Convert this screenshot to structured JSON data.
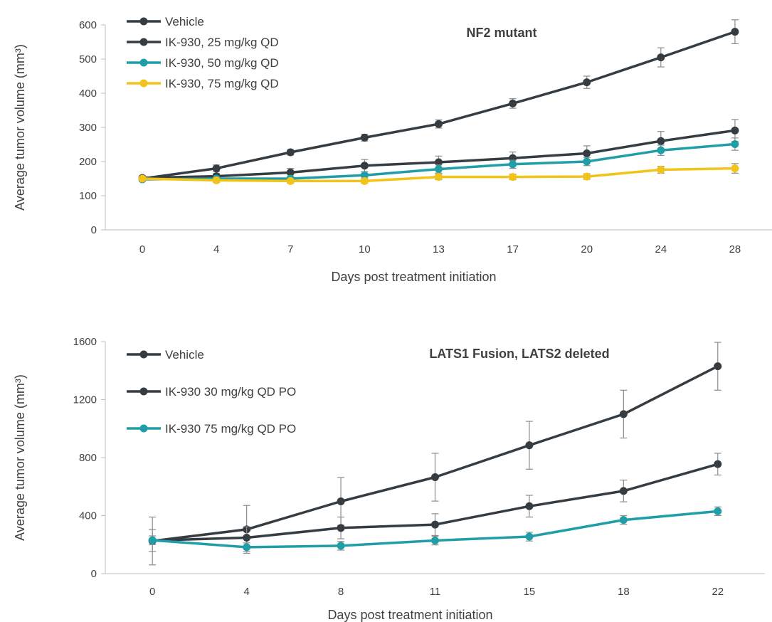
{
  "chart_data": [
    {
      "type": "line",
      "title": "NF2 mutant",
      "xlabel": "Days post treatment initiation",
      "ylabel": "Average tumor volume (mm³)",
      "x": [
        "0",
        "4",
        "7",
        "10",
        "13",
        "17",
        "20",
        "24",
        "28"
      ],
      "ylim": [
        0,
        600
      ],
      "yticks": [
        0,
        100,
        200,
        300,
        400,
        500,
        600
      ],
      "grid": false,
      "legend_position": "top-left",
      "series": [
        {
          "name": "Vehicle",
          "color": "#353c42",
          "values": [
            150,
            180,
            227,
            270,
            310,
            370,
            432,
            505,
            580
          ],
          "errors": [
            8,
            10,
            8,
            10,
            12,
            14,
            18,
            28,
            35
          ]
        },
        {
          "name": "IK-930, 25 mg/kg QD",
          "color": "#353c42",
          "values": [
            152,
            157,
            168,
            188,
            198,
            210,
            224,
            260,
            291
          ],
          "errors": [
            6,
            8,
            12,
            18,
            18,
            18,
            22,
            28,
            32
          ]
        },
        {
          "name": "IK-930, 50 mg/kg QD",
          "color": "#1f9ea8",
          "values": [
            148,
            150,
            150,
            160,
            178,
            192,
            200,
            233,
            251
          ],
          "errors": [
            5,
            6,
            6,
            10,
            12,
            12,
            12,
            15,
            18
          ]
        },
        {
          "name": "IK-930, 75 mg/kg QD",
          "color": "#f2c318",
          "values": [
            150,
            145,
            143,
            143,
            155,
            155,
            156,
            176,
            180
          ],
          "errors": [
            4,
            6,
            6,
            6,
            8,
            8,
            8,
            10,
            14
          ]
        }
      ]
    },
    {
      "type": "line",
      "title": "LATS1 Fusion, LATS2 deleted",
      "xlabel": "Days post treatment initiation",
      "ylabel": "Average tumor volume (mm³)",
      "x": [
        "0",
        "4",
        "8",
        "11",
        "15",
        "18",
        "22"
      ],
      "ylim": [
        0,
        1600
      ],
      "yticks": [
        0,
        400,
        800,
        1200,
        1600
      ],
      "grid": false,
      "legend_position": "top-left",
      "series": [
        {
          "name": "Vehicle",
          "color": "#353c42",
          "values": [
            225,
            305,
            498,
            665,
            885,
            1100,
            1430
          ],
          "errors": [
            165,
            165,
            165,
            165,
            165,
            165,
            165
          ]
        },
        {
          "name": "IK-930 30 mg/kg QD PO",
          "color": "#353c42",
          "values": [
            228,
            248,
            315,
            338,
            465,
            570,
            755
          ],
          "errors": [
            75,
            75,
            75,
            75,
            75,
            75,
            75
          ]
        },
        {
          "name": "IK-930 75 mg/kg QD PO",
          "color": "#1f9ea8",
          "values": [
            230,
            182,
            192,
            228,
            255,
            370,
            430
          ],
          "errors": [
            30,
            30,
            30,
            30,
            30,
            30,
            30
          ]
        }
      ]
    }
  ]
}
